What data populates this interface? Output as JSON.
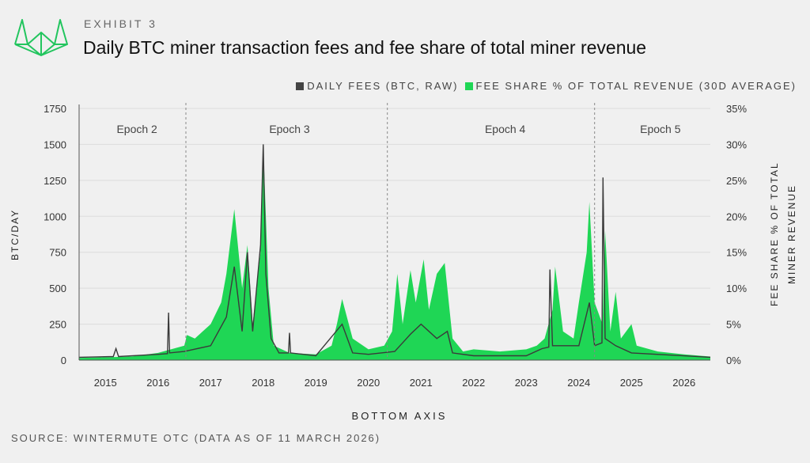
{
  "header": {
    "exhibit": "EXHIBIT 3",
    "title": "Daily BTC miner transaction fees and fee share of total miner revenue"
  },
  "source": "SOURCE: WINTERMUTE OTC (DATA AS OF 11 MARCH 2026)",
  "colors": {
    "fees": "#3a3a3a",
    "share": "#1fd655",
    "logo": "#22c55e"
  },
  "chart_data": {
    "type": "area",
    "title": "Daily BTC miner transaction fees and fee share of total miner revenue",
    "xlabel": "BOTTOM AXIS",
    "ylabel": "BTC/DAY",
    "y2label_lines": [
      "FEE SHARE % OF TOTAL",
      "MINER REVENUE"
    ],
    "xlim": [
      2014.5,
      2026.5
    ],
    "ylim": [
      0,
      1750
    ],
    "y2lim": [
      0,
      35
    ],
    "grid": true,
    "legend_placement": "top-right",
    "legend": [
      "DAILY FEES (BTC, RAW)",
      "FEE SHARE % OF TOTAL REVENUE (30D AVERAGE)"
    ],
    "x_ticks": [
      "2015",
      "2016",
      "2017",
      "2018",
      "2019",
      "2020",
      "2021",
      "2022",
      "2023",
      "2024",
      "2025",
      "2026"
    ],
    "y_ticks": [
      "0",
      "250",
      "500",
      "750",
      "1000",
      "1250",
      "1500",
      "1750"
    ],
    "y2_ticks": [
      "0%",
      "5%",
      "10%",
      "15%",
      "20%",
      "25%",
      "30%",
      "35%"
    ],
    "epochs": [
      {
        "label": "Epoch 2",
        "x": 2015.6
      },
      {
        "label": "Epoch 3",
        "x": 2018.5
      },
      {
        "label": "Epoch 4",
        "x": 2022.6
      },
      {
        "label": "Epoch 5",
        "x": 2025.55
      }
    ],
    "halvings": [
      2016.53,
      2020.36,
      2024.3
    ],
    "series": [
      {
        "name": "FEE SHARE % OF TOTAL REVENUE (30D AVERAGE)",
        "unit": "%",
        "axis": "right",
        "points": [
          [
            2014.5,
            0.3
          ],
          [
            2015.5,
            0.5
          ],
          [
            2016.0,
            1
          ],
          [
            2016.5,
            2
          ],
          [
            2016.55,
            3.5
          ],
          [
            2016.7,
            3
          ],
          [
            2017.0,
            5
          ],
          [
            2017.2,
            8
          ],
          [
            2017.3,
            12
          ],
          [
            2017.45,
            21
          ],
          [
            2017.6,
            10
          ],
          [
            2017.7,
            16
          ],
          [
            2017.8,
            5
          ],
          [
            2017.95,
            15
          ],
          [
            2018.0,
            30
          ],
          [
            2018.1,
            10
          ],
          [
            2018.2,
            2
          ],
          [
            2018.5,
            1
          ],
          [
            2019.0,
            0.8
          ],
          [
            2019.3,
            2
          ],
          [
            2019.4,
            5
          ],
          [
            2019.5,
            8.5
          ],
          [
            2019.7,
            3
          ],
          [
            2020.0,
            1.5
          ],
          [
            2020.3,
            2
          ],
          [
            2020.45,
            4
          ],
          [
            2020.55,
            12
          ],
          [
            2020.65,
            5
          ],
          [
            2020.8,
            12.5
          ],
          [
            2020.9,
            8
          ],
          [
            2021.05,
            14
          ],
          [
            2021.15,
            7
          ],
          [
            2021.3,
            12
          ],
          [
            2021.45,
            13.5
          ],
          [
            2021.6,
            3
          ],
          [
            2021.8,
            1.2
          ],
          [
            2022.0,
            1.5
          ],
          [
            2022.5,
            1.2
          ],
          [
            2023.0,
            1.5
          ],
          [
            2023.2,
            2
          ],
          [
            2023.35,
            3
          ],
          [
            2023.5,
            7
          ],
          [
            2023.55,
            13
          ],
          [
            2023.7,
            4
          ],
          [
            2023.9,
            3
          ],
          [
            2024.0,
            8
          ],
          [
            2024.15,
            15
          ],
          [
            2024.2,
            22
          ],
          [
            2024.3,
            8
          ],
          [
            2024.45,
            5
          ],
          [
            2024.5,
            18
          ],
          [
            2024.6,
            4
          ],
          [
            2024.7,
            9.5
          ],
          [
            2024.8,
            3
          ],
          [
            2025.0,
            5
          ],
          [
            2025.1,
            2
          ],
          [
            2025.5,
            1.2
          ],
          [
            2026.0,
            0.8
          ],
          [
            2026.5,
            0.5
          ]
        ]
      },
      {
        "name": "DAILY FEES (BTC, RAW)",
        "unit": "BTC",
        "axis": "left",
        "points": [
          [
            2014.5,
            20
          ],
          [
            2015.15,
            25
          ],
          [
            2015.2,
            80
          ],
          [
            2015.25,
            25
          ],
          [
            2016.0,
            40
          ],
          [
            2016.18,
            45
          ],
          [
            2016.2,
            330
          ],
          [
            2016.22,
            50
          ],
          [
            2016.5,
            60
          ],
          [
            2017.0,
            100
          ],
          [
            2017.3,
            300
          ],
          [
            2017.45,
            650
          ],
          [
            2017.6,
            200
          ],
          [
            2017.7,
            750
          ],
          [
            2017.8,
            200
          ],
          [
            2017.95,
            800
          ],
          [
            2018.0,
            1500
          ],
          [
            2018.05,
            600
          ],
          [
            2018.15,
            150
          ],
          [
            2018.3,
            50
          ],
          [
            2018.48,
            50
          ],
          [
            2018.5,
            190
          ],
          [
            2018.52,
            50
          ],
          [
            2019.0,
            30
          ],
          [
            2019.5,
            250
          ],
          [
            2019.7,
            50
          ],
          [
            2020.0,
            40
          ],
          [
            2020.5,
            60
          ],
          [
            2020.8,
            180
          ],
          [
            2021.0,
            250
          ],
          [
            2021.3,
            150
          ],
          [
            2021.5,
            200
          ],
          [
            2021.6,
            50
          ],
          [
            2022.0,
            30
          ],
          [
            2023.0,
            30
          ],
          [
            2023.3,
            80
          ],
          [
            2023.43,
            90
          ],
          [
            2023.45,
            630
          ],
          [
            2023.5,
            100
          ],
          [
            2024.0,
            100
          ],
          [
            2024.2,
            400
          ],
          [
            2024.3,
            100
          ],
          [
            2024.44,
            120
          ],
          [
            2024.46,
            1270
          ],
          [
            2024.5,
            150
          ],
          [
            2024.7,
            100
          ],
          [
            2025.0,
            50
          ],
          [
            2026.5,
            20
          ]
        ]
      }
    ]
  }
}
